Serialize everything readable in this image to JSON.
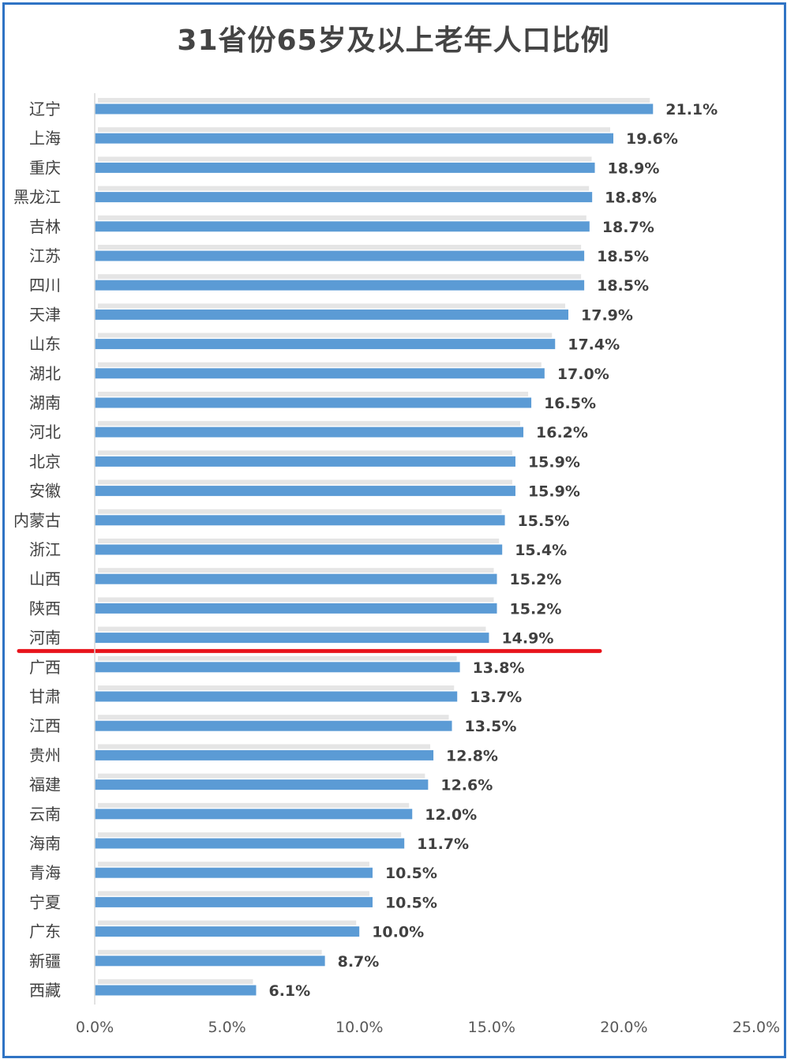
{
  "chart_data": {
    "type": "bar",
    "orientation": "horizontal",
    "title": "31省份65岁及以上老年人口比例",
    "categories": [
      "辽宁",
      "上海",
      "重庆",
      "黑龙江",
      "吉林",
      "江苏",
      "四川",
      "天津",
      "山东",
      "湖北",
      "湖南",
      "河北",
      "北京",
      "安徽",
      "内蒙古",
      "浙江",
      "山西",
      "陕西",
      "河南",
      "广西",
      "甘肃",
      "江西",
      "贵州",
      "福建",
      "云南",
      "海南",
      "青海",
      "宁夏",
      "广东",
      "新疆",
      "西藏"
    ],
    "values": [
      21.1,
      19.6,
      18.9,
      18.8,
      18.7,
      18.5,
      18.5,
      17.9,
      17.4,
      17.0,
      16.5,
      16.2,
      15.9,
      15.9,
      15.5,
      15.4,
      15.2,
      15.2,
      14.9,
      13.8,
      13.7,
      13.5,
      12.8,
      12.6,
      12.0,
      11.7,
      10.5,
      10.5,
      10.0,
      8.7,
      6.1
    ],
    "value_labels": [
      "21.1%",
      "19.6%",
      "18.9%",
      "18.8%",
      "18.7%",
      "18.5%",
      "18.5%",
      "17.9%",
      "17.4%",
      "17.0%",
      "16.5%",
      "16.2%",
      "15.9%",
      "15.9%",
      "15.5%",
      "15.4%",
      "15.2%",
      "15.2%",
      "14.9%",
      "13.8%",
      "13.7%",
      "13.5%",
      "12.8%",
      "12.6%",
      "12.0%",
      "11.7%",
      "10.5%",
      "10.5%",
      "10.0%",
      "8.7%",
      "6.1%"
    ],
    "xlim": [
      0,
      25
    ],
    "x_ticks": [
      0,
      5,
      10,
      15,
      20,
      25
    ],
    "x_tick_labels": [
      "0.0%",
      "5.0%",
      "10.0%",
      "15.0%",
      "20.0%",
      "25.0%"
    ],
    "grid": false,
    "legend": "none",
    "highlight_divider_after": "河南",
    "colors": {
      "bar": "#5b9bd5",
      "divider": "#e8141c",
      "frame": "#2f73c4",
      "text": "#404040",
      "axis": "#d9d9d9"
    }
  }
}
